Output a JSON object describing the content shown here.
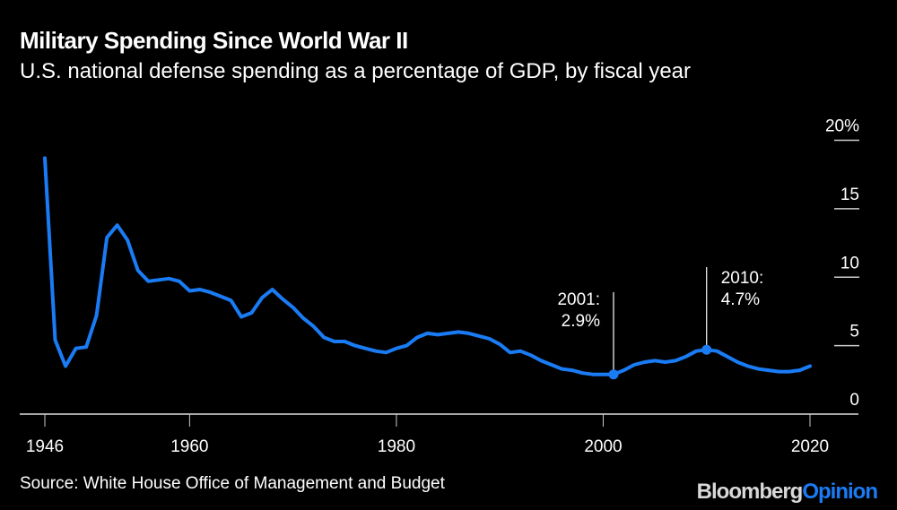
{
  "chart_data": {
    "type": "line",
    "title": "Military Spending Since World War II",
    "subtitle": "U.S. national defense spending as a percentage of GDP, by fiscal year",
    "x": [
      1946,
      1947,
      1948,
      1949,
      1950,
      1951,
      1952,
      1953,
      1954,
      1955,
      1956,
      1957,
      1958,
      1959,
      1960,
      1961,
      1962,
      1963,
      1964,
      1965,
      1966,
      1967,
      1968,
      1969,
      1970,
      1971,
      1972,
      1973,
      1974,
      1975,
      1976,
      1977,
      1978,
      1979,
      1980,
      1981,
      1982,
      1983,
      1984,
      1985,
      1986,
      1987,
      1988,
      1989,
      1990,
      1991,
      1992,
      1993,
      1994,
      1995,
      1996,
      1997,
      1998,
      1999,
      2000,
      2001,
      2002,
      2003,
      2004,
      2005,
      2006,
      2007,
      2008,
      2009,
      2010,
      2011,
      2012,
      2013,
      2014,
      2015,
      2016,
      2017,
      2018,
      2019,
      2020
    ],
    "values": [
      18.7,
      5.4,
      3.5,
      4.8,
      4.9,
      7.2,
      12.9,
      13.8,
      12.7,
      10.5,
      9.7,
      9.8,
      9.9,
      9.7,
      9.0,
      9.1,
      8.9,
      8.6,
      8.3,
      7.1,
      7.4,
      8.5,
      9.1,
      8.4,
      7.8,
      7.0,
      6.4,
      5.6,
      5.3,
      5.3,
      5.0,
      4.8,
      4.6,
      4.5,
      4.8,
      5.0,
      5.6,
      5.9,
      5.8,
      5.9,
      6.0,
      5.9,
      5.7,
      5.5,
      5.1,
      4.5,
      4.6,
      4.3,
      3.9,
      3.6,
      3.3,
      3.2,
      3.0,
      2.9,
      2.9,
      2.9,
      3.2,
      3.6,
      3.8,
      3.9,
      3.8,
      3.9,
      4.2,
      4.6,
      4.7,
      4.6,
      4.2,
      3.8,
      3.5,
      3.3,
      3.2,
      3.1,
      3.1,
      3.2,
      3.5
    ],
    "xlim": [
      1946,
      2020
    ],
    "ylim": [
      0,
      20
    ],
    "x_ticks": [
      "1946",
      "1960",
      "1980",
      "2000",
      "2020"
    ],
    "y_ticks": [
      "20%",
      "15",
      "10",
      "5",
      "0"
    ],
    "y_tick_values": [
      20,
      15,
      10,
      5,
      0
    ],
    "x_tick_values": [
      1946,
      1960,
      1980,
      2000,
      2020
    ],
    "grid": false,
    "line_color": "#1a7cf5",
    "annotations": [
      {
        "year": 2001,
        "value": 2.9,
        "line1": "2001:",
        "line2": "2.9%"
      },
      {
        "year": 2010,
        "value": 4.7,
        "line1": "2010:",
        "line2": "4.7%"
      }
    ]
  },
  "source": "Source: White House Office of Management and Budget",
  "logo": {
    "brand": "Bloomberg",
    "section": "Opinion"
  }
}
